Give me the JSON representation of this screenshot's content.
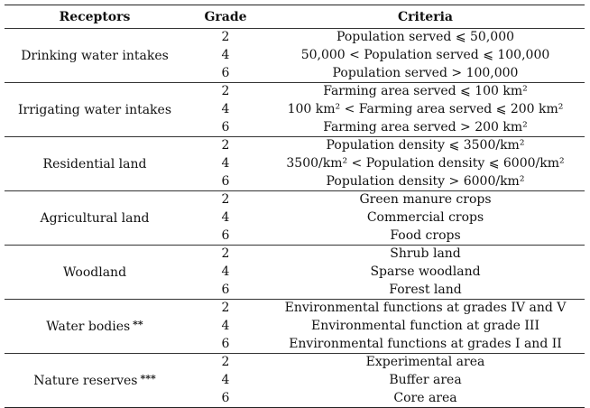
{
  "header": {
    "receptors": "Receptors",
    "grade": "Grade",
    "criteria": "Criteria"
  },
  "groups": [
    {
      "receptor": "Drinking water intakes",
      "mark": "",
      "grades": [
        "2",
        "4",
        "6"
      ],
      "criteria": [
        "Population served ⩽ 50,000",
        "50,000 < Population served ⩽ 100,000",
        "Population served > 100,000"
      ]
    },
    {
      "receptor": "Irrigating water intakes",
      "mark": "",
      "grades": [
        "2",
        "4",
        "6"
      ],
      "criteria": [
        "Farming area served ⩽ 100 km²",
        "100 km² < Farming area served ⩽ 200 km²",
        "Farming area served > 200 km²"
      ]
    },
    {
      "receptor": "Residential land",
      "mark": "",
      "grades": [
        "2",
        "4",
        "6"
      ],
      "criteria": [
        "Population density ⩽ 3500/km²",
        "3500/km² < Population density ⩽ 6000/km²",
        "Population density > 6000/km²"
      ]
    },
    {
      "receptor": "Agricultural land",
      "mark": "",
      "grades": [
        "2",
        "4",
        "6"
      ],
      "criteria": [
        "Green manure crops",
        "Commercial crops",
        "Food crops"
      ]
    },
    {
      "receptor": "Woodland",
      "mark": "",
      "grades": [
        "2",
        "4",
        "6"
      ],
      "criteria": [
        "Shrub land",
        "Sparse woodland",
        "Forest land"
      ]
    },
    {
      "receptor": "Water bodies",
      "mark": "**",
      "grades": [
        "2",
        "4",
        "6"
      ],
      "criteria": [
        "Environmental functions at grades IV and V",
        "Environmental function at grade III",
        "Environmental functions at grades I and II"
      ]
    },
    {
      "receptor": "Nature reserves",
      "mark": "***",
      "grades": [
        "2",
        "4",
        "6"
      ],
      "criteria": [
        "Experimental area",
        "Buffer area",
        "Core area"
      ]
    }
  ]
}
